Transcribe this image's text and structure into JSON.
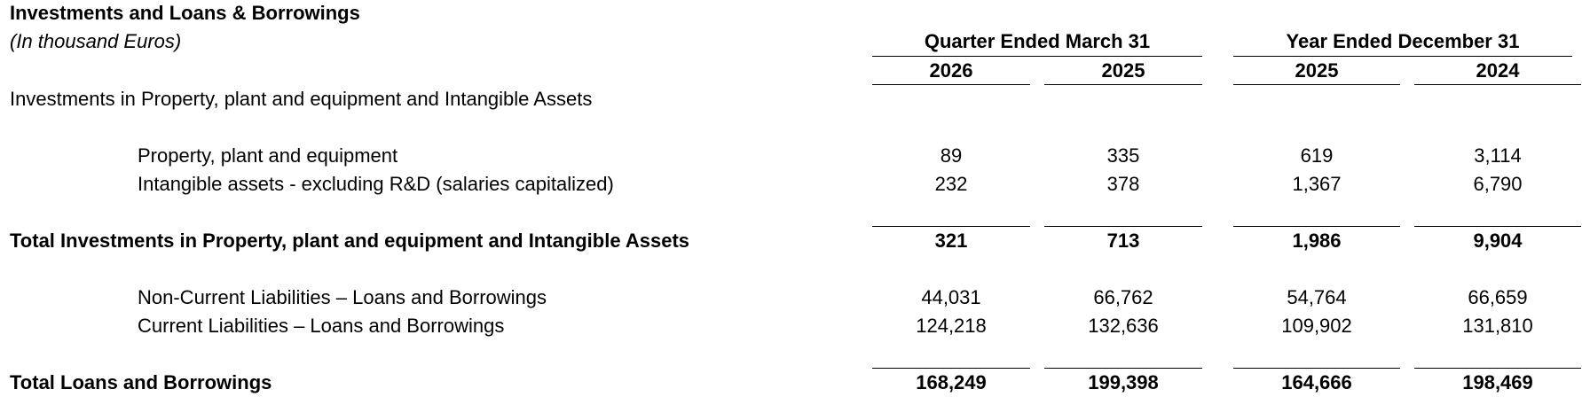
{
  "table": {
    "title": "Investments and Loans & Borrowings",
    "subtitle": "(In thousand Euros)",
    "groups": [
      {
        "label": "Quarter Ended March 31"
      },
      {
        "label": "Year Ended December 31"
      }
    ],
    "columns": [
      "2026",
      "2025",
      "2025",
      "2024"
    ],
    "section_heading": "Investments in Property, plant and equipment and Intangible Assets",
    "rows": [
      {
        "label": "Property, plant and equipment",
        "values": [
          "89",
          "335",
          "619",
          "3,114"
        ]
      },
      {
        "label": "Intangible assets - excluding R&D (salaries capitalized)",
        "values": [
          "232",
          "378",
          "1,367",
          "6,790"
        ]
      },
      {
        "label": "Total Investments in Property, plant and equipment and Intangible Assets",
        "values": [
          "321",
          "713",
          "1,986",
          "9,904"
        ]
      },
      {
        "label": "Non-Current Liabilities – Loans and Borrowings",
        "values": [
          "44,031",
          "66,762",
          "54,764",
          "66,659"
        ]
      },
      {
        "label": "Current Liabilities – Loans and Borrowings",
        "values": [
          "124,218",
          "132,636",
          "109,902",
          "131,810"
        ]
      },
      {
        "label": "Total Loans and Borrowings",
        "values": [
          "168,249",
          "199,398",
          "164,666",
          "198,469"
        ]
      }
    ]
  }
}
